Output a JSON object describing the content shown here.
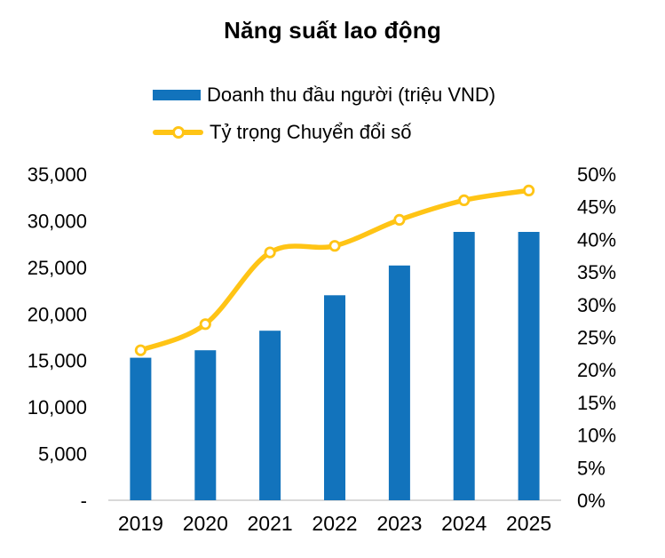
{
  "chart_data": {
    "type": "bar+line",
    "title": "Năng suất lao động",
    "categories": [
      "2019",
      "2020",
      "2021",
      "2022",
      "2023",
      "2024",
      "2025"
    ],
    "series": [
      {
        "name": "Doanh thu đầu người (triệu VND)",
        "type": "bar",
        "axis": "left",
        "color": "#1273BC",
        "values": [
          15300,
          16100,
          18200,
          22000,
          25200,
          28800,
          28800
        ]
      },
      {
        "name": "Tỷ trọng Chuyển đổi số",
        "type": "line",
        "axis": "right",
        "color": "#FFC415",
        "marker": "open-circle",
        "marker_fill": "#FFFFFF",
        "smooth": true,
        "values": [
          23,
          27,
          38,
          39,
          43,
          46,
          47.5
        ]
      }
    ],
    "left_axis": {
      "min": 0,
      "max": 35000,
      "tick_values": [
        0,
        5000,
        10000,
        15000,
        20000,
        25000,
        30000,
        35000
      ],
      "tick_labels": [
        "-",
        "5,000",
        "10,000",
        "15,000",
        "20,000",
        "25,000",
        "30,000",
        "35,000"
      ]
    },
    "right_axis": {
      "min": 0,
      "max": 50,
      "tick_values": [
        0,
        5,
        10,
        15,
        20,
        25,
        30,
        35,
        40,
        45,
        50
      ],
      "tick_labels": [
        "0%",
        "5%",
        "10%",
        "15%",
        "20%",
        "25%",
        "30%",
        "35%",
        "40%",
        "45%",
        "50%"
      ]
    },
    "grid": false,
    "legend_position": "top-left-of-plot",
    "axis_line_color": "#D9D9D9",
    "text_color": "#000000",
    "background_color": "#FFFFFF"
  }
}
